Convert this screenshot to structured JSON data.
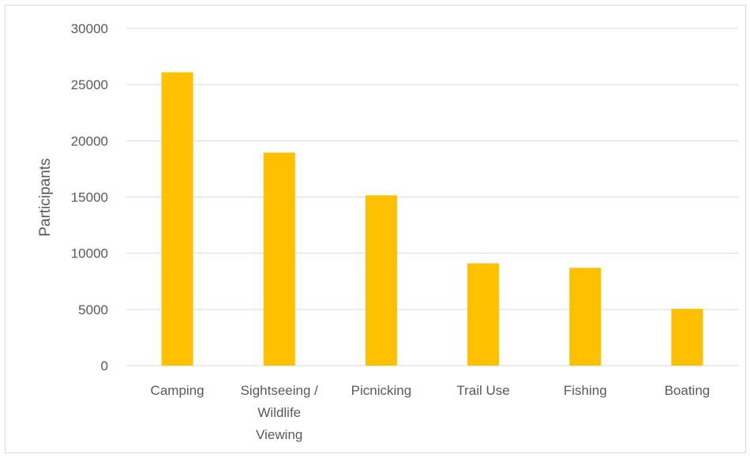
{
  "chart_data": {
    "type": "bar",
    "categories": [
      "Camping",
      "Sightseeing / Wildlife Viewing",
      "Picnicking",
      "Trail Use",
      "Fishing",
      "Boating"
    ],
    "category_lines": [
      [
        "Camping"
      ],
      [
        "Sightseeing /",
        "Wildlife",
        "Viewing"
      ],
      [
        "Picnicking"
      ],
      [
        "Trail Use"
      ],
      [
        "Fishing"
      ],
      [
        "Boating"
      ]
    ],
    "values": [
      26100,
      18950,
      15150,
      9100,
      8700,
      5050
    ],
    "xlabel": "",
    "ylabel": "Participants",
    "ylim": [
      0,
      30000
    ],
    "yticks": [
      0,
      5000,
      10000,
      15000,
      20000,
      25000,
      30000
    ],
    "grid": true,
    "colors": {
      "bar": "#FFC000",
      "grid": "#d9d9d9",
      "text": "#595959"
    }
  }
}
